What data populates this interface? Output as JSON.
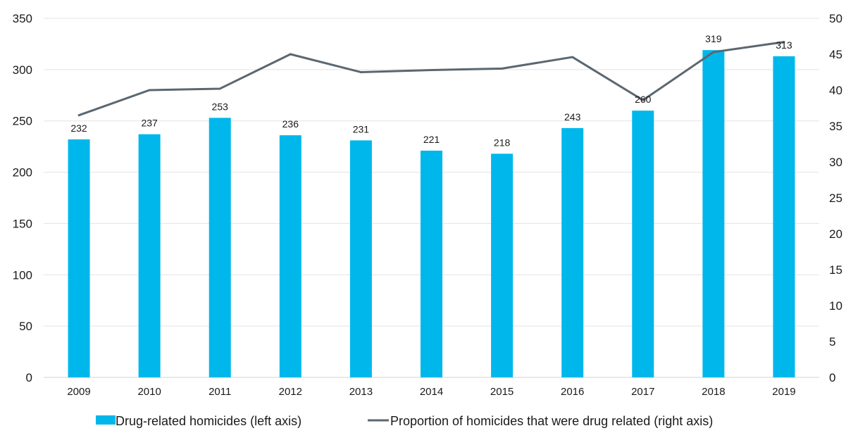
{
  "chart_data": {
    "type": "bar",
    "categories": [
      "2009",
      "2010",
      "2011",
      "2012",
      "2013",
      "2014",
      "2015",
      "2016",
      "2017",
      "2018",
      "2019"
    ],
    "series": [
      {
        "name": "Drug-related homicides (left axis)",
        "type": "bar",
        "axis": "left",
        "values": [
          232,
          237,
          253,
          236,
          231,
          221,
          218,
          243,
          260,
          319,
          313
        ],
        "color": "#00b7eb"
      },
      {
        "name": "Proportion of homicides that were drug related (right axis)",
        "type": "line",
        "axis": "right",
        "values": [
          36.5,
          40.0,
          40.2,
          45.0,
          42.5,
          42.8,
          43.0,
          44.6,
          38.6,
          45.3,
          46.7
        ],
        "color": "#5b6770"
      }
    ],
    "left_axis": {
      "ylim": [
        0,
        350
      ],
      "ticks": [
        "0",
        "50",
        "100",
        "150",
        "200",
        "250",
        "300",
        "350"
      ]
    },
    "right_axis": {
      "ylim": [
        0,
        50
      ],
      "ticks": [
        "0",
        "5",
        "10",
        "15",
        "20",
        "25",
        "30",
        "35",
        "40",
        "45",
        "50"
      ]
    },
    "grid": true,
    "legend_position": "bottom"
  }
}
